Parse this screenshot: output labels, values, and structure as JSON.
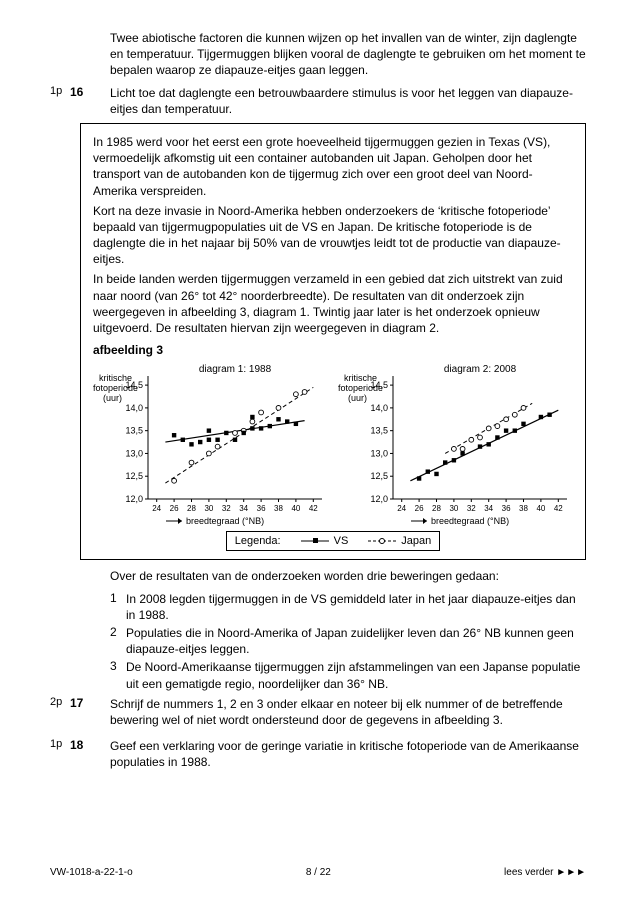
{
  "intro": "Twee abiotische factoren die kunnen wijzen op het invallen van de winter, zijn daglengte en temperatuur. Tijgermuggen blijken vooral de daglengte te gebruiken om het moment te bepalen waarop ze diapauze-eitjes gaan leggen.",
  "q16": {
    "marker": "1p",
    "num": "16",
    "text": "Licht toe dat daglengte een betrouwbaardere stimulus is voor het leggen van diapauze-eitjes dan temperatuur."
  },
  "box": {
    "p1": "In 1985 werd voor het eerst een grote hoeveelheid tijgermuggen gezien in Texas (VS), vermoedelijk afkomstig uit een container autobanden uit Japan. Geholpen door het transport van de autobanden kon de tijgermug zich over een groot deel van Noord-Amerika verspreiden.",
    "p2": "Kort na deze invasie in Noord-Amerika hebben onderzoekers de ‘kritische fotoperiode’ bepaald van tijgermugpopulaties uit de VS en Japan. De kritische fotoperiode is de daglengte die in het najaar bij 50% van de vrouwtjes leidt tot de productie van diapauze-eitjes.",
    "p3": "In beide landen werden tijgermuggen verzameld in een gebied dat zich uitstrekt van zuid naar noord (van 26° tot 42° noorderbreedte). De resultaten van dit onderzoek zijn weergegeven in afbeelding 3, diagram 1. Twintig jaar later is het onderzoek opnieuw uitgevoerd. De resultaten hiervan zijn weergegeven in diagram 2.",
    "figlabel": "afbeelding 3"
  },
  "chart1": {
    "title": "diagram 1: 1988",
    "ylabel1": "kritische",
    "ylabel2": "fotoperiode",
    "ylabel3": "(uur)",
    "xlabel": "breedtegraad (°NB)",
    "xlim": [
      23,
      43
    ],
    "ylim": [
      12.0,
      14.7
    ],
    "xticks": [
      24,
      26,
      28,
      30,
      32,
      34,
      36,
      38,
      40,
      42
    ],
    "yticks": [
      12.0,
      12.5,
      13.0,
      13.5,
      14.0,
      14.5
    ],
    "ytick_labels": [
      "12,0",
      "12,5",
      "13,0",
      "13,5",
      "14,0",
      "14,5"
    ],
    "vs": [
      [
        26,
        13.4
      ],
      [
        27,
        13.3
      ],
      [
        28,
        13.2
      ],
      [
        29,
        13.25
      ],
      [
        30,
        13.3
      ],
      [
        30,
        13.5
      ],
      [
        31,
        13.3
      ],
      [
        32,
        13.45
      ],
      [
        33,
        13.3
      ],
      [
        34,
        13.45
      ],
      [
        35,
        13.55
      ],
      [
        35,
        13.8
      ],
      [
        36,
        13.55
      ],
      [
        37,
        13.6
      ],
      [
        38,
        13.75
      ],
      [
        39,
        13.7
      ],
      [
        40,
        13.65
      ]
    ],
    "japan": [
      [
        26,
        12.4
      ],
      [
        28,
        12.8
      ],
      [
        30,
        13.0
      ],
      [
        31,
        13.15
      ],
      [
        33,
        13.45
      ],
      [
        34,
        13.5
      ],
      [
        35,
        13.7
      ],
      [
        36,
        13.9
      ],
      [
        38,
        14.0
      ],
      [
        40,
        14.3
      ],
      [
        41,
        14.35
      ]
    ],
    "vs_line": [
      [
        25,
        13.25
      ],
      [
        41,
        13.72
      ]
    ],
    "japan_line": [
      [
        25,
        12.35
      ],
      [
        42,
        14.45
      ]
    ]
  },
  "chart2": {
    "title": "diagram 2: 2008",
    "ylabel1": "kritische",
    "ylabel2": "fotoperiode",
    "ylabel3": "(uur)",
    "xlabel": "breedtegraad (°NB)",
    "xlim": [
      23,
      43
    ],
    "ylim": [
      12.0,
      14.7
    ],
    "xticks": [
      24,
      26,
      28,
      30,
      32,
      34,
      36,
      38,
      40,
      42
    ],
    "yticks": [
      12.0,
      12.5,
      13.0,
      13.5,
      14.0,
      14.5
    ],
    "ytick_labels": [
      "12,0",
      "12,5",
      "13,0",
      "13,5",
      "14,0",
      "14,5"
    ],
    "vs": [
      [
        26,
        12.45
      ],
      [
        27,
        12.6
      ],
      [
        28,
        12.55
      ],
      [
        29,
        12.8
      ],
      [
        30,
        12.85
      ],
      [
        31,
        13.0
      ],
      [
        33,
        13.15
      ],
      [
        34,
        13.2
      ],
      [
        35,
        13.35
      ],
      [
        36,
        13.5
      ],
      [
        37,
        13.5
      ],
      [
        38,
        13.65
      ],
      [
        40,
        13.8
      ],
      [
        41,
        13.85
      ]
    ],
    "japan": [
      [
        30,
        13.1
      ],
      [
        31,
        13.1
      ],
      [
        32,
        13.3
      ],
      [
        33,
        13.35
      ],
      [
        34,
        13.55
      ],
      [
        35,
        13.6
      ],
      [
        36,
        13.75
      ],
      [
        37,
        13.85
      ],
      [
        38,
        14.0
      ]
    ],
    "vs_line": [
      [
        25,
        12.4
      ],
      [
        42,
        13.95
      ]
    ],
    "japan_line": [
      [
        29,
        13.0
      ],
      [
        39,
        14.1
      ]
    ]
  },
  "legend": {
    "title": "Legenda:",
    "vs": "VS",
    "japan": "Japan"
  },
  "post": "Over de resultaten van de onderzoeken worden drie beweringen gedaan:",
  "statements": [
    "In 2008 legden tijgermuggen in de VS gemiddeld later in het jaar diapauze-eitjes dan in 1988.",
    "Populaties die in Noord-Amerika of Japan zuidelijker leven dan 26° NB kunnen geen diapauze-eitjes leggen.",
    "De Noord-Amerikaanse tijgermuggen zijn afstammelingen van een Japanse populatie uit een gematigde regio, noordelijker dan 36° NB."
  ],
  "q17": {
    "marker": "2p",
    "num": "17",
    "text": "Schrijf de nummers 1, 2 en 3 onder elkaar en noteer bij elk nummer of de betreffende bewering wel of niet wordt ondersteund door de gegevens in afbeelding 3."
  },
  "q18": {
    "marker": "1p",
    "num": "18",
    "text": "Geef een verklaring voor de geringe variatie in kritische fotoperiode van de Amerikaanse populaties in 1988."
  },
  "footer": {
    "left": "VW-1018-a-22-1-o",
    "center": "8 / 22",
    "right": "lees verder ►►►"
  }
}
